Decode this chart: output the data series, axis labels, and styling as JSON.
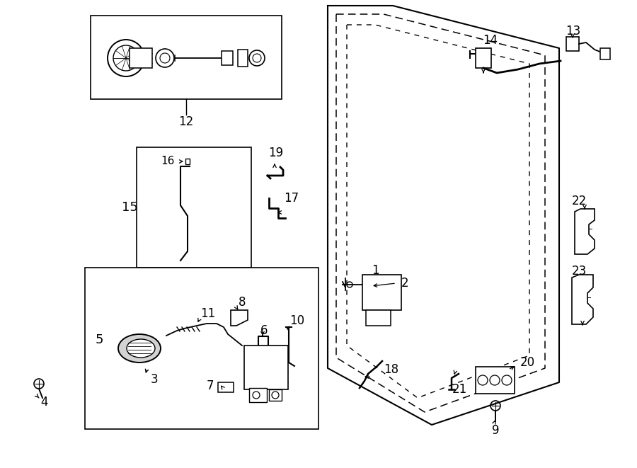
{
  "bg_color": "#ffffff",
  "fig_width": 9.0,
  "fig_height": 6.61,
  "dpi": 100
}
